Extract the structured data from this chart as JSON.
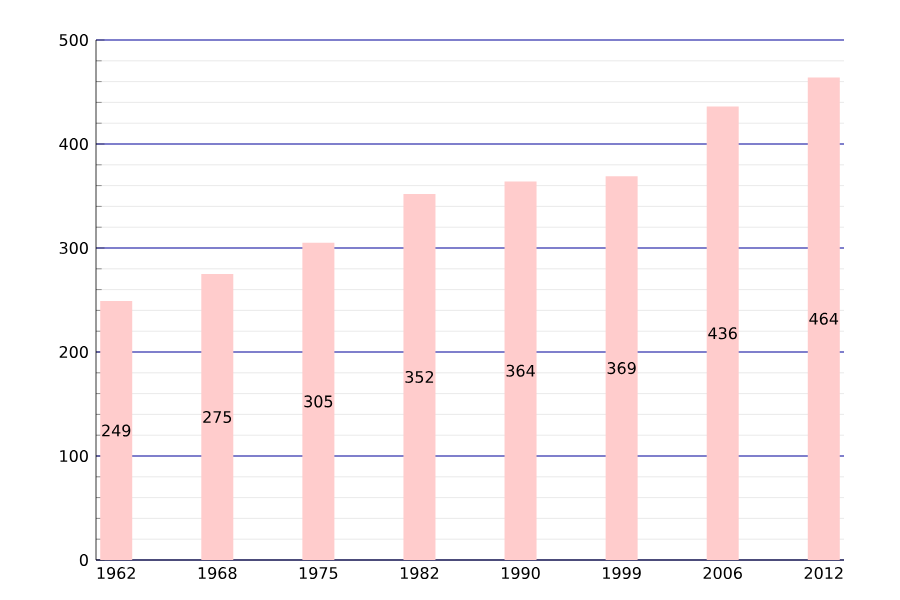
{
  "chart_data": {
    "type": "bar",
    "categories": [
      "1962",
      "1968",
      "1975",
      "1982",
      "1990",
      "1999",
      "2006",
      "2012"
    ],
    "values": [
      249,
      275,
      305,
      352,
      364,
      369,
      436,
      464
    ],
    "color": "#ffcccc",
    "ylim": [
      0,
      500
    ],
    "yticks": [
      0,
      100,
      200,
      300,
      400,
      500
    ],
    "grid": "y",
    "data_labels": true
  }
}
